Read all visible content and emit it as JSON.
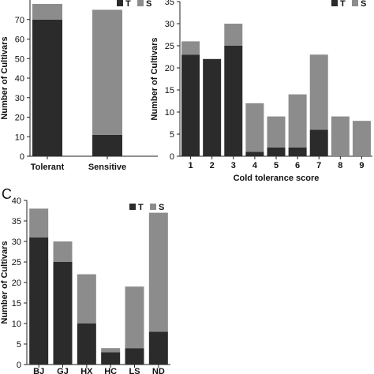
{
  "colors": {
    "tolerant": "#2b2b2b",
    "sensitive": "#8c8c8c",
    "axis": "#222222"
  },
  "panel_c_letter": "C",
  "chart_data": [
    {
      "type": "bar",
      "stacked": true,
      "categories": [
        "Tolerant",
        "Sensitive"
      ],
      "series": [
        {
          "name": "T",
          "values": [
            70,
            11
          ]
        },
        {
          "name": "S",
          "values": [
            8,
            64
          ]
        }
      ],
      "ylabel": "Number of Cultivars",
      "xlabel": "",
      "ylim": [
        0,
        80
      ],
      "yticks": [
        0,
        10,
        20,
        30,
        40,
        50,
        60,
        70
      ],
      "legend": "top-right",
      "grid": false
    },
    {
      "type": "bar",
      "stacked": true,
      "categories": [
        "1",
        "2",
        "3",
        "4",
        "5",
        "6",
        "7",
        "8",
        "9"
      ],
      "series": [
        {
          "name": "T",
          "values": [
            23,
            22,
            25,
            1,
            2,
            2,
            6,
            0,
            0
          ]
        },
        {
          "name": "S",
          "values": [
            3,
            0,
            5,
            11,
            7,
            12,
            17,
            9,
            8
          ]
        }
      ],
      "ylabel": "Number of Cultivars",
      "xlabel": "Cold tolerance score",
      "ylim": [
        0,
        35
      ],
      "yticks": [
        0,
        5,
        10,
        15,
        20,
        25,
        30,
        35
      ],
      "legend": "top-right",
      "grid": false
    },
    {
      "type": "bar",
      "stacked": true,
      "categories": [
        "BJ",
        "GJ",
        "HX",
        "HC",
        "LS",
        "ND"
      ],
      "series": [
        {
          "name": "T",
          "values": [
            31,
            25,
            10,
            3,
            4,
            8
          ]
        },
        {
          "name": "S",
          "values": [
            7,
            5,
            12,
            1,
            15,
            29
          ]
        }
      ],
      "ylabel": "Number of Cultivars",
      "xlabel": "",
      "ylim": [
        0,
        40
      ],
      "yticks": [
        0,
        5,
        10,
        15,
        20,
        25,
        30,
        35,
        40
      ],
      "legend": "top-right",
      "grid": false
    }
  ]
}
